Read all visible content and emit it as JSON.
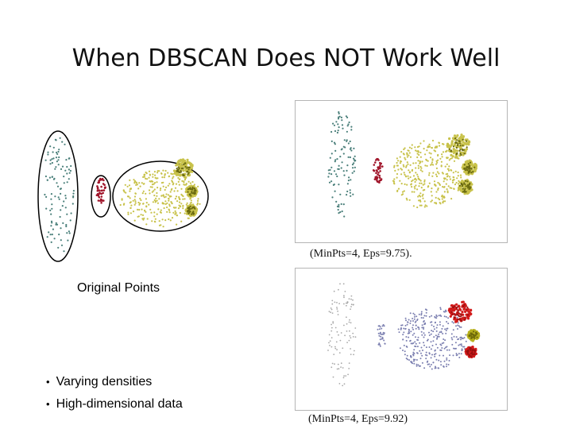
{
  "slide": {
    "title": "When DBSCAN Does NOT Work Well",
    "original_label": "Original Points",
    "top_caption": "(MinPts=4, Eps=9.75).",
    "bottom_caption": "(MinPts=4, Eps=9.92)",
    "bullets": [
      "Varying densities",
      "High-dimensional data"
    ]
  },
  "colors": {
    "teal": "#4a7f7a",
    "red": "#a0152a",
    "olive": "#c8c24a",
    "olive_dark": "#6a6a10",
    "blue_gray": "#7b7fb0",
    "light_gray": "#a8a8a8",
    "bright_red": "#d21b1b",
    "yellow_green": "#b6b01e"
  }
}
